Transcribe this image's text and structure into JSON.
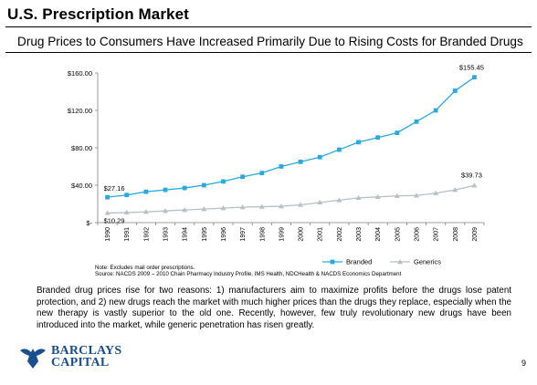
{
  "header": {
    "title": "U.S. Prescription Market",
    "subtitle": "Drug Prices to Consumers Have Increased Primarily Due to Rising Costs for Branded Drugs"
  },
  "chart_data": {
    "type": "line",
    "x": [
      "1990",
      "1991",
      "1992",
      "1993",
      "1994",
      "1995",
      "1996",
      "1997",
      "1998",
      "1999",
      "2000",
      "2001",
      "2002",
      "2003",
      "2004",
      "2005",
      "2006",
      "2007",
      "2008",
      "2009"
    ],
    "series": [
      {
        "name": "Branded",
        "color": "#29a9df",
        "marker": "square",
        "values": [
          27.16,
          29.5,
          33,
          35,
          37,
          40,
          44,
          49,
          53,
          60,
          65,
          70,
          78,
          86,
          91,
          96,
          108,
          120,
          141,
          155.45
        ]
      },
      {
        "name": "Generics",
        "color": "#b5c0c7",
        "marker": "triangle",
        "values": [
          10.29,
          10.8,
          11.5,
          12.5,
          13.5,
          14.5,
          15.5,
          16.5,
          17,
          17.5,
          19,
          21.5,
          24,
          26.5,
          27.5,
          28.5,
          29,
          31.5,
          35,
          39.73
        ]
      }
    ],
    "ylim": [
      0,
      160
    ],
    "yticks": [
      0,
      40,
      80,
      120,
      160
    ],
    "ytick_labels": [
      "$-",
      "$40.00",
      "$80.00",
      "$120.00",
      "$160.00"
    ],
    "data_labels": [
      {
        "series": 0,
        "index": 0,
        "text": "$27.16"
      },
      {
        "series": 1,
        "index": 0,
        "text": "$10.29"
      },
      {
        "series": 0,
        "index": 19,
        "text": "$155.45"
      },
      {
        "series": 1,
        "index": 19,
        "text": "$39.73"
      }
    ],
    "legend": [
      "Branded",
      "Generics"
    ],
    "legend_position": "bottom-right",
    "grid": false
  },
  "notes": {
    "note": "Note: Excludes mail order prescriptions.",
    "source": "Source: NACDS 2009 – 2010 Chain Pharmacy Industry Profile, IMS Health, NDCHealth & NACDS Economics Department"
  },
  "body_text": "Branded drug prices rise for two reasons: 1) manufacturers aim to maximize profits before the drugs lose patent protection, and 2) new drugs reach the market with much higher prices than the drugs they replace, especially when the new therapy is vastly superior to the old one.  Recently, however, few truly revolutionary new drugs have been introduced into the market, while generic penetration has risen greatly.",
  "footer": {
    "logo_line1": "BARCLAYS",
    "logo_line2": "CAPITAL",
    "page_number": "9",
    "logo_color": "#1a4f8f"
  }
}
